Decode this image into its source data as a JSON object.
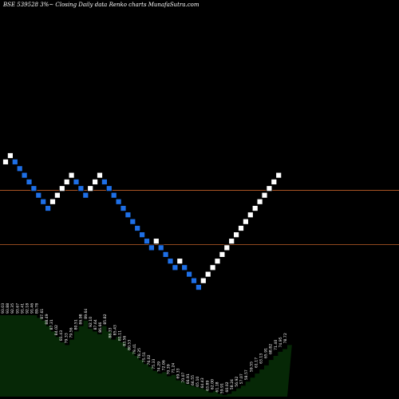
{
  "chart_data": {
    "type": "renko",
    "title": "BSE 539528  3%~  Closing Daily data  Renko  charts MunafaSutra.com",
    "colors": {
      "background": "#000000",
      "up_brick": "#ffffff",
      "down_brick": "#1e6fe6",
      "brick_border": "#000000",
      "reference_line": "#c0602a",
      "volume_fill": "#062806",
      "label": "#ffffff"
    },
    "bricks": [
      {
        "dir": "up",
        "price": 91.4
      },
      {
        "dir": "up",
        "price": 94.1
      },
      {
        "dir": "down",
        "price": 91.4
      },
      {
        "dir": "down",
        "price": 88.6
      },
      {
        "dir": "down",
        "price": 85.9
      },
      {
        "dir": "down",
        "price": 83.3
      },
      {
        "dir": "down",
        "price": 80.8
      },
      {
        "dir": "down",
        "price": 78.3
      },
      {
        "dir": "down",
        "price": 76.0
      },
      {
        "dir": "down",
        "price": 73.7
      },
      {
        "dir": "up",
        "price": 76.0
      },
      {
        "dir": "up",
        "price": 78.3
      },
      {
        "dir": "up",
        "price": 80.8
      },
      {
        "dir": "up",
        "price": 83.3
      },
      {
        "dir": "up",
        "price": 85.9
      },
      {
        "dir": "down",
        "price": 83.3
      },
      {
        "dir": "down",
        "price": 80.8
      },
      {
        "dir": "down",
        "price": 78.3
      },
      {
        "dir": "up",
        "price": 80.8
      },
      {
        "dir": "up",
        "price": 83.3
      },
      {
        "dir": "up",
        "price": 85.9
      },
      {
        "dir": "down",
        "price": 83.3
      },
      {
        "dir": "down",
        "price": 80.8
      },
      {
        "dir": "down",
        "price": 78.3
      },
      {
        "dir": "down",
        "price": 76.0
      },
      {
        "dir": "down",
        "price": 73.7
      },
      {
        "dir": "down",
        "price": 71.5
      },
      {
        "dir": "down",
        "price": 69.3
      },
      {
        "dir": "down",
        "price": 67.2
      },
      {
        "dir": "down",
        "price": 65.2
      },
      {
        "dir": "down",
        "price": 63.3
      },
      {
        "dir": "down",
        "price": 61.4
      },
      {
        "dir": "up",
        "price": 63.3
      },
      {
        "dir": "down",
        "price": 61.4
      },
      {
        "dir": "down",
        "price": 59.5
      },
      {
        "dir": "down",
        "price": 57.7
      },
      {
        "dir": "down",
        "price": 56.0
      },
      {
        "dir": "up",
        "price": 57.7
      },
      {
        "dir": "down",
        "price": 56.0
      },
      {
        "dir": "down",
        "price": 54.3
      },
      {
        "dir": "down",
        "price": 52.7
      },
      {
        "dir": "down",
        "price": 51.1
      },
      {
        "dir": "up",
        "price": 52.7
      },
      {
        "dir": "up",
        "price": 54.3
      },
      {
        "dir": "up",
        "price": 56.0
      },
      {
        "dir": "up",
        "price": 57.7
      },
      {
        "dir": "up",
        "price": 59.5
      },
      {
        "dir": "up",
        "price": 61.4
      },
      {
        "dir": "up",
        "price": 63.3
      },
      {
        "dir": "up",
        "price": 65.2
      },
      {
        "dir": "up",
        "price": 67.2
      },
      {
        "dir": "up",
        "price": 69.3
      },
      {
        "dir": "up",
        "price": 71.5
      },
      {
        "dir": "up",
        "price": 73.7
      },
      {
        "dir": "up",
        "price": 76.0
      },
      {
        "dir": "up",
        "price": 78.3
      },
      {
        "dir": "up",
        "price": 80.8
      },
      {
        "dir": "up",
        "price": 83.3
      },
      {
        "dir": "up",
        "price": 85.9
      }
    ],
    "reference_lines": [
      80.1,
      62.3
    ],
    "price_labels": [
      "93.03",
      "93.88",
      "92.35",
      "93.67",
      "91.41",
      "92.18",
      "91.46",
      "89.78",
      "87.61",
      "88.49",
      "87.31",
      "84.02",
      "81.43",
      "79.33",
      "79.56",
      "80.51",
      "86.98",
      "89.64",
      "92.10",
      "87.64",
      "86.66",
      "85.82",
      "88.33",
      "85.43",
      "81.11",
      "83.56",
      "80.53",
      "79.41",
      "78.25",
      "75.51",
      "76.02",
      "75.33",
      "74.29",
      "72.06",
      "70.39",
      "71.24",
      "69.33",
      "70.07",
      "66.91",
      "66.55",
      "65.10",
      "64.43",
      "63.89",
      "62.00",
      "61.18",
      "59.91",
      "60.02",
      "58.24",
      "56.92",
      "57.07",
      "58.57",
      "59.55",
      "61.17",
      "63.13",
      "65.91",
      "68.82",
      "71.40",
      "74.95",
      "78.72"
    ],
    "volume_values": [
      60,
      60,
      60,
      60,
      60,
      60,
      60,
      60,
      58,
      56,
      52,
      48,
      44,
      40,
      38,
      42,
      48,
      52,
      56,
      50,
      48,
      46,
      52,
      48,
      42,
      44,
      40,
      36,
      33,
      30,
      27,
      24,
      22,
      19,
      17,
      18,
      15,
      16,
      12,
      11,
      9,
      8,
      7,
      6,
      5,
      3,
      4,
      2,
      1,
      2,
      4,
      6,
      8,
      11,
      14,
      17,
      20,
      23,
      27,
      30,
      33,
      35,
      38
    ],
    "volume_max": 70
  }
}
